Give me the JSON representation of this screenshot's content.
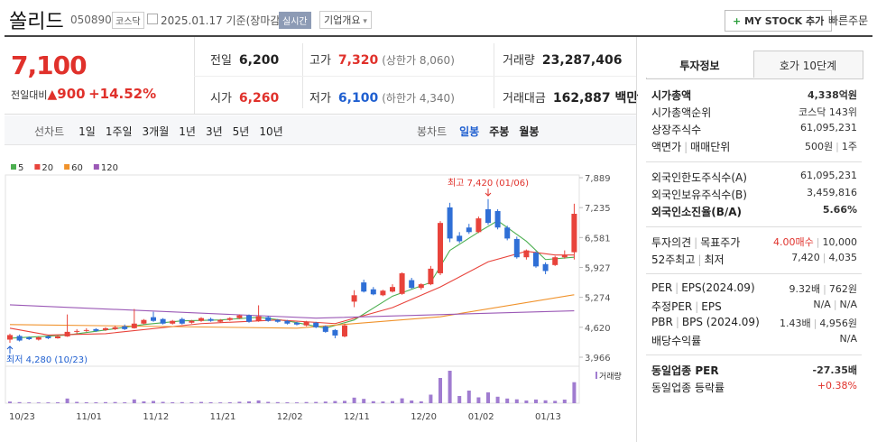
{
  "header": {
    "name": "쏠리드",
    "code": "050890",
    "market": "코스닥",
    "date": "2025.01.17",
    "basis": "기준(장마감)",
    "realtime": "실시간",
    "company": "기업개요",
    "mystock": "MY STOCK 추가",
    "quick_order": "빠른주문"
  },
  "quote": {
    "price": "7,100",
    "change_label": "전일대비",
    "change": "900",
    "change_rate": "+14.52%",
    "items": [
      {
        "label": "전일",
        "value": "6,200",
        "color": "#222222"
      },
      {
        "label": "고가",
        "value": "7,320",
        "sub": "(상한가 8,060)",
        "color": "#e0312b"
      },
      {
        "label": "거래량",
        "value": "23,287,406",
        "color": "#222222"
      },
      {
        "label": "시가",
        "value": "6,260",
        "color": "#e0312b"
      },
      {
        "label": "저가",
        "value": "6,100",
        "sub": "(하한가 4,340)",
        "color": "#1f5fd0"
      },
      {
        "label": "거래대금",
        "value": "162,887 백만",
        "color": "#222222"
      }
    ]
  },
  "tabs": {
    "line_tabs": [
      "선차트",
      "1일",
      "1주일",
      "3개월",
      "1년",
      "3년",
      "5년",
      "10년"
    ],
    "candle_tabs": [
      "봉차트",
      "일봉",
      "주봉",
      "월봉"
    ],
    "candle_selected": 1
  },
  "chart_data": {
    "type": "candlestick",
    "categories": [
      "10/23",
      null,
      null,
      null,
      null,
      null,
      null,
      "11/01",
      null,
      null,
      null,
      null,
      null,
      null,
      "11/12",
      null,
      null,
      null,
      null,
      null,
      null,
      "11/21",
      null,
      null,
      null,
      null,
      null,
      null,
      "12/02",
      null,
      null,
      null,
      null,
      null,
      null,
      "12/11",
      null,
      null,
      null,
      null,
      null,
      null,
      "12/20",
      null,
      null,
      null,
      null,
      null,
      "01/02",
      null,
      null,
      null,
      null,
      null,
      null,
      "01/13",
      null,
      null,
      null,
      null
    ],
    "open": [
      4350,
      4430,
      4400,
      4350,
      4420,
      4380,
      4420,
      4520,
      4540,
      4580,
      4560,
      4580,
      4640,
      4600,
      4700,
      4840,
      4800,
      4700,
      4800,
      4720,
      4760,
      4800,
      4740,
      4780,
      4820,
      4880,
      4760,
      4840,
      4780,
      4760,
      4720,
      4660,
      4720,
      4640,
      4560,
      4420,
      5180,
      5600,
      5450,
      5320,
      5400,
      5350,
      5650,
      5480,
      5560,
      5800,
      7240,
      6620,
      6800,
      6700,
      7200,
      7160,
      6800,
      6550,
      6150,
      6250,
      6000,
      5980,
      6150,
      6260
    ],
    "high": [
      4480,
      4460,
      4420,
      4420,
      4440,
      4440,
      4900,
      4580,
      4600,
      4600,
      4620,
      4650,
      4680,
      5020,
      4800,
      4960,
      4820,
      4780,
      4830,
      4780,
      4840,
      4830,
      4800,
      4840,
      4900,
      4900,
      5100,
      4870,
      4800,
      4780,
      4740,
      4760,
      4740,
      4660,
      4580,
      4700,
      5430,
      5660,
      5500,
      5440,
      5560,
      5820,
      5700,
      5580,
      5960,
      6940,
      7340,
      6700,
      6880,
      7040,
      7420,
      7200,
      6840,
      6600,
      6320,
      6280,
      6040,
      6180,
      6300,
      7320
    ],
    "low": [
      4280,
      4310,
      4340,
      4330,
      4360,
      4370,
      4410,
      4480,
      4520,
      4520,
      4540,
      4560,
      4560,
      4590,
      4680,
      4740,
      4680,
      4680,
      4680,
      4700,
      4740,
      4740,
      4720,
      4760,
      4800,
      4720,
      4740,
      4740,
      4720,
      4680,
      4660,
      4640,
      4600,
      4500,
      4380,
      4400,
      5060,
      5380,
      5320,
      5300,
      5380,
      5330,
      5460,
      5440,
      5540,
      5760,
      6480,
      6460,
      6660,
      6680,
      6860,
      6760,
      6520,
      6120,
      6100,
      5920,
      5780,
      5960,
      6120,
      6100
    ],
    "close": [
      4450,
      4330,
      4360,
      4400,
      4380,
      4420,
      4520,
      4540,
      4560,
      4540,
      4600,
      4620,
      4580,
      4700,
      4780,
      4760,
      4700,
      4760,
      4700,
      4760,
      4820,
      4760,
      4780,
      4820,
      4880,
      4740,
      4860,
      4760,
      4740,
      4700,
      4680,
      4740,
      4620,
      4520,
      4440,
      4660,
      5320,
      5400,
      5340,
      5420,
      5500,
      5800,
      5480,
      5560,
      5900,
      6900,
      6560,
      6500,
      6700,
      7000,
      6900,
      6800,
      6560,
      6150,
      6300,
      5950,
      5850,
      6150,
      6200,
      7100
    ],
    "up_color": "#e8433b",
    "down_color": "#2f6fd6",
    "ylim": [
      3808,
      7948
    ],
    "yticks": [
      {
        "value": 7889,
        "label": "7,889"
      },
      {
        "value": 7235,
        "label": "7,235"
      },
      {
        "value": 6581,
        "label": "6,581"
      },
      {
        "value": 5927,
        "label": "5,927"
      },
      {
        "value": 5274,
        "label": "5,274"
      },
      {
        "value": 4620,
        "label": "4,620"
      },
      {
        "value": 3966,
        "label": "3,966"
      }
    ],
    "series": [
      {
        "name": "5",
        "color": "#4caf50",
        "x": [
          0,
          6,
          10,
          14,
          18,
          22,
          26,
          29,
          33,
          36,
          40,
          44,
          46,
          49,
          51,
          54,
          56,
          59
        ],
        "values": [
          4380,
          4450,
          4560,
          4680,
          4760,
          4780,
          4840,
          4760,
          4600,
          4780,
          5300,
          5600,
          6300,
          6700,
          6950,
          6500,
          6100,
          6150
        ]
      },
      {
        "name": "20",
        "color": "#e8433b",
        "x": [
          0,
          4,
          10,
          20,
          28,
          34,
          40,
          45,
          50,
          54,
          57,
          59
        ],
        "values": [
          4600,
          4450,
          4480,
          4700,
          4780,
          4700,
          5050,
          5500,
          6050,
          6280,
          6200,
          6200
        ]
      },
      {
        "name": "60",
        "color": "#f0922b",
        "x": [
          0,
          30,
          45,
          59
        ],
        "values": [
          4680,
          4600,
          4850,
          5330
        ]
      },
      {
        "name": "120",
        "color": "#9b59b6",
        "x": [
          0,
          32,
          59
        ],
        "values": [
          5110,
          4820,
          4980
        ]
      }
    ],
    "high_label": "최고 7,420 (01/06)",
    "low_label": "최저 4,280 (10/23)",
    "volume": {
      "name": "거래량",
      "color": "#a07cd0",
      "ylim": [
        0,
        40000000
      ],
      "values": [
        1800000,
        1200000,
        900000,
        800000,
        900000,
        1000000,
        5200000,
        1500000,
        1100000,
        1000000,
        1200000,
        1300000,
        1000000,
        4200000,
        2000000,
        2500000,
        1500000,
        1100000,
        1200000,
        1000000,
        1400000,
        1100000,
        900000,
        1100000,
        1600000,
        2000000,
        3100000,
        1500000,
        1200000,
        1000000,
        900000,
        1300000,
        1400000,
        1800000,
        2400000,
        2600000,
        6200000,
        4800000,
        2200000,
        1900000,
        2300000,
        5400000,
        3000000,
        2000000,
        9500000,
        28000000,
        36000000,
        8000000,
        14000000,
        6500000,
        12000000,
        7200000,
        5200000,
        4300000,
        3000000,
        4100000,
        3200000,
        2600000,
        4000000,
        23287406
      ]
    }
  },
  "panel": {
    "tabs": [
      "투자정보",
      "호가 10단계"
    ],
    "groups": [
      [
        {
          "label": [
            "시가총액"
          ],
          "value": [
            "4,338억원"
          ],
          "bold": true
        },
        {
          "label": [
            "시가총액순위"
          ],
          "value": [
            "코스닥 143위"
          ]
        },
        {
          "label": [
            "상장주식수"
          ],
          "value": [
            "61,095,231"
          ]
        },
        {
          "label": [
            "액면가",
            "매매단위"
          ],
          "value": [
            "500원",
            "1주"
          ]
        }
      ],
      [
        {
          "label": [
            "외국인한도주식수(A)"
          ],
          "value": [
            "61,095,231"
          ]
        },
        {
          "label": [
            "외국인보유주식수(B)"
          ],
          "value": [
            "3,459,816"
          ]
        },
        {
          "label": [
            "외국인소진율(B/A)"
          ],
          "value": [
            "5.66%"
          ],
          "bold": true
        }
      ],
      [
        {
          "label": [
            "투자의견",
            "목표주가"
          ],
          "value": [
            "4.00매수",
            "10,000"
          ],
          "colors": [
            "#e0312b",
            "#333333"
          ]
        },
        {
          "label": [
            "52주최고",
            "최저"
          ],
          "value": [
            "7,420",
            "4,035"
          ]
        }
      ],
      [
        {
          "label": [
            "PER",
            "EPS(2024.09)"
          ],
          "value": [
            "9.32배",
            "762원"
          ]
        },
        {
          "label": [
            "추정PER",
            "EPS"
          ],
          "value": [
            "N/A",
            "N/A"
          ]
        },
        {
          "label": [
            "PBR",
            "BPS (2024.09)"
          ],
          "value": [
            "1.43배",
            "4,956원"
          ]
        },
        {
          "label": [
            "배당수익률"
          ],
          "value": [
            "N/A"
          ]
        }
      ],
      [
        {
          "label": [
            "동일업종 PER"
          ],
          "value": [
            "-27.35배"
          ],
          "bold": true
        },
        {
          "label": [
            "동일업종 등락률"
          ],
          "value": [
            "+0.38%"
          ],
          "colors": [
            "#e0312b"
          ]
        }
      ]
    ]
  }
}
